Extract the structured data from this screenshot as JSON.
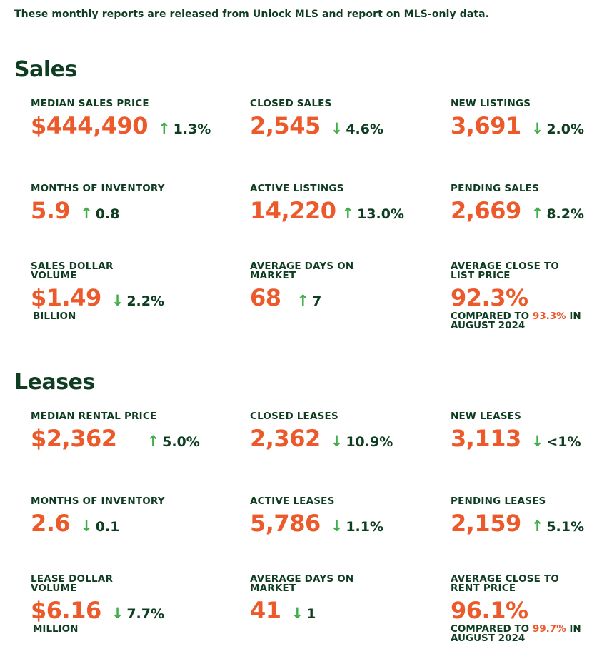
{
  "intro": "These monthly reports are released from Unlock MLS and report on MLS-only data.",
  "colors": {
    "accent": "#ec5a2b",
    "heading": "#0f3d22",
    "arrow": "#3fae49"
  },
  "sales": {
    "title": "Sales",
    "median_sales_price": {
      "label": "MEDIAN SALES PRICE",
      "value": "$444,490",
      "dir": "up",
      "change": "1.3%"
    },
    "closed_sales": {
      "label": "CLOSED SALES",
      "value": "2,545",
      "dir": "down",
      "change": "4.6%"
    },
    "new_listings": {
      "label": "NEW LISTINGS",
      "value": "3,691",
      "dir": "down",
      "change": "2.0%"
    },
    "months_of_inventory": {
      "label": "MONTHS OF INVENTORY",
      "value": "5.9",
      "dir": "up",
      "change": "0.8"
    },
    "active_listings": {
      "label": "ACTIVE LISTINGS",
      "value": "14,220",
      "dir": "up",
      "change": "13.0%"
    },
    "pending_sales": {
      "label": "PENDING SALES",
      "value": "2,669",
      "dir": "up",
      "change": "8.2%"
    },
    "sales_dollar_volume": {
      "label": "SALES DOLLAR VOLUME",
      "value": "$1.49",
      "dir": "down",
      "change": "2.2%",
      "unit": "BILLION"
    },
    "avg_days_on_market": {
      "label": "AVERAGE DAYS ON MARKET",
      "value": "68",
      "dir": "up",
      "change": "7"
    },
    "avg_close_to_list": {
      "label": "AVERAGE CLOSE TO LIST PRICE",
      "value": "92.3%",
      "compare_prefix": "COMPARED TO",
      "compare_value": "93.3%",
      "compare_suffix": "IN",
      "compare_period": "AUGUST 2024"
    }
  },
  "leases": {
    "title": "Leases",
    "median_rental_price": {
      "label": "MEDIAN RENTAL PRICE",
      "value": "$2,362",
      "dir": "up",
      "change": "5.0%"
    },
    "closed_leases": {
      "label": "CLOSED LEASES",
      "value": "2,362",
      "dir": "down",
      "change": "10.9%"
    },
    "new_leases": {
      "label": "NEW LEASES",
      "value": "3,113",
      "dir": "down",
      "change": "<1%"
    },
    "months_of_inventory": {
      "label": "MONTHS OF INVENTORY",
      "value": "2.6",
      "dir": "down",
      "change": "0.1"
    },
    "active_leases": {
      "label": "ACTIVE LEASES",
      "value": "5,786",
      "dir": "down",
      "change": "1.1%"
    },
    "pending_leases": {
      "label": "PENDING LEASES",
      "value": "2,159",
      "dir": "up",
      "change": "5.1%"
    },
    "lease_dollar_volume": {
      "label": "LEASE DOLLAR VOLUME",
      "value": "$6.16",
      "dir": "down",
      "change": "7.7%",
      "unit": "MILLION"
    },
    "avg_days_on_market": {
      "label": "AVERAGE DAYS ON MARKET",
      "value": "41",
      "dir": "down",
      "change": "1"
    },
    "avg_close_to_rent": {
      "label": "AVERAGE CLOSE TO RENT PRICE",
      "value": "96.1%",
      "compare_prefix": "COMPARED TO",
      "compare_value": "99.7%",
      "compare_suffix": "IN",
      "compare_period": "AUGUST 2024"
    }
  }
}
